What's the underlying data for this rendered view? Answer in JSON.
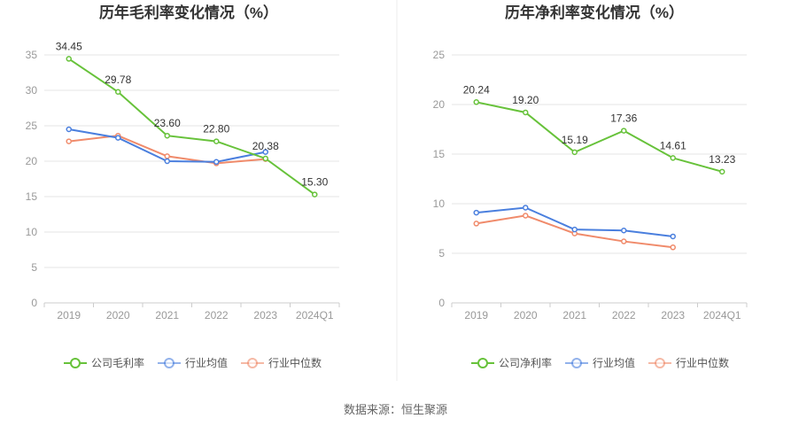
{
  "source": "数据来源：恒生聚源",
  "colors": {
    "company": "#67c23a",
    "industry_avg": "#4a7fde",
    "industry_median": "#f08b6b",
    "grid": "#e6e6e6",
    "axis": "#cccccc"
  },
  "chart_data": [
    {
      "type": "line",
      "title": "历年毛利率变化情况（%）",
      "categories": [
        "2019",
        "2020",
        "2021",
        "2022",
        "2023",
        "2024Q1"
      ],
      "ylim": [
        0,
        35
      ],
      "yticks": [
        0,
        5,
        10,
        15,
        20,
        25,
        30,
        35
      ],
      "xlabel": "",
      "ylabel": "",
      "series": [
        {
          "name": "公司毛利率",
          "key": "company",
          "values": [
            34.45,
            29.78,
            23.6,
            22.8,
            20.38,
            15.3
          ],
          "labels": [
            "34.45",
            "29.78",
            "23.60",
            "22.80",
            "20.38",
            "15.30"
          ]
        },
        {
          "name": "行业均值",
          "key": "industry_avg",
          "values": [
            24.5,
            23.3,
            20.0,
            19.9,
            21.3,
            null
          ]
        },
        {
          "name": "行业中位数",
          "key": "industry_median",
          "values": [
            22.8,
            23.6,
            20.7,
            19.7,
            20.3,
            null
          ]
        }
      ],
      "legend": [
        "公司毛利率",
        "行业均值",
        "行业中位数"
      ]
    },
    {
      "type": "line",
      "title": "历年净利率变化情况（%）",
      "categories": [
        "2019",
        "2020",
        "2021",
        "2022",
        "2023",
        "2024Q1"
      ],
      "ylim": [
        0,
        25
      ],
      "yticks": [
        0,
        5,
        10,
        15,
        20,
        25
      ],
      "xlabel": "",
      "ylabel": "",
      "series": [
        {
          "name": "公司净利率",
          "key": "company",
          "values": [
            20.24,
            19.2,
            15.19,
            17.36,
            14.61,
            13.23
          ],
          "labels": [
            "20.24",
            "19.20",
            "15.19",
            "17.36",
            "14.61",
            "13.23"
          ]
        },
        {
          "name": "行业均值",
          "key": "industry_avg",
          "values": [
            9.1,
            9.6,
            7.4,
            7.3,
            6.7,
            null
          ]
        },
        {
          "name": "行业中位数",
          "key": "industry_median",
          "values": [
            8.0,
            8.8,
            7.0,
            6.2,
            5.6,
            null
          ]
        }
      ],
      "legend": [
        "公司净利率",
        "行业均值",
        "行业中位数"
      ]
    }
  ]
}
